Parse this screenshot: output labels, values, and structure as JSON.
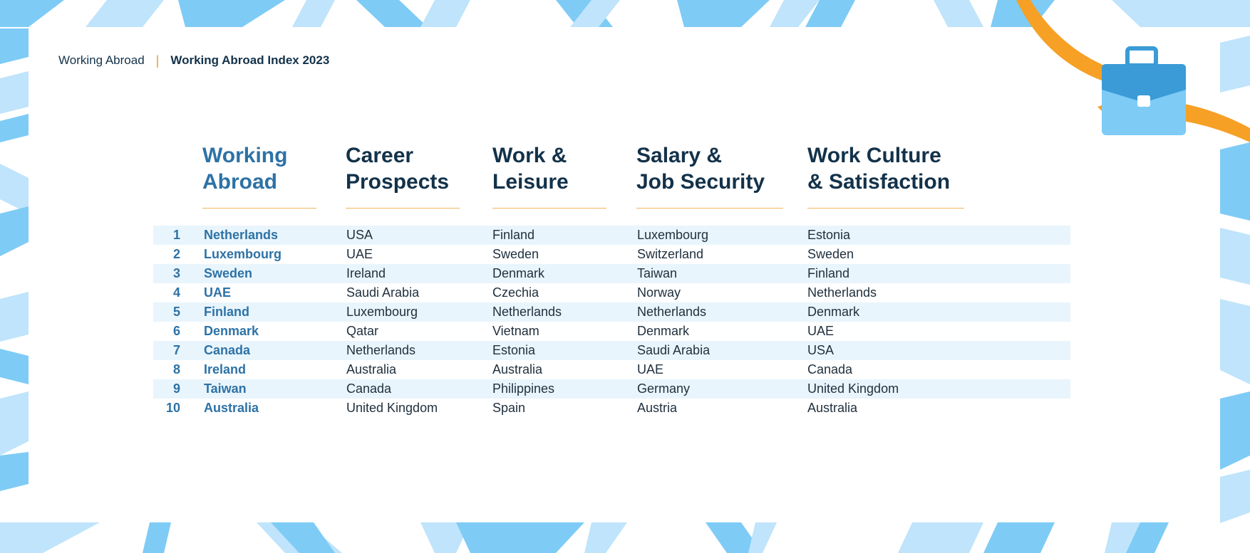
{
  "breadcrumb": {
    "parent": "Working Abroad",
    "separator": "|",
    "current": "Working Abroad Index 2023"
  },
  "columns": [
    "Working\nAbroad",
    "Career\nProspects",
    "Work &\nLeisure",
    "Salary &\nJob Security",
    "Work Culture\n& Satisfaction"
  ],
  "rows": [
    {
      "rank": "1",
      "working_abroad": "Netherlands",
      "career_prospects": "USA",
      "work_leisure": "Finland",
      "salary_job_security": "Luxembourg",
      "work_culture_satisfaction": "Estonia"
    },
    {
      "rank": "2",
      "working_abroad": "Luxembourg",
      "career_prospects": "UAE",
      "work_leisure": "Sweden",
      "salary_job_security": "Switzerland",
      "work_culture_satisfaction": "Sweden"
    },
    {
      "rank": "3",
      "working_abroad": "Sweden",
      "career_prospects": "Ireland",
      "work_leisure": "Denmark",
      "salary_job_security": "Taiwan",
      "work_culture_satisfaction": "Finland"
    },
    {
      "rank": "4",
      "working_abroad": "UAE",
      "career_prospects": "Saudi Arabia",
      "work_leisure": "Czechia",
      "salary_job_security": "Norway",
      "work_culture_satisfaction": "Netherlands"
    },
    {
      "rank": "5",
      "working_abroad": "Finland",
      "career_prospects": "Luxembourg",
      "work_leisure": "Netherlands",
      "salary_job_security": "Netherlands",
      "work_culture_satisfaction": "Denmark"
    },
    {
      "rank": "6",
      "working_abroad": "Denmark",
      "career_prospects": "Qatar",
      "work_leisure": "Vietnam",
      "salary_job_security": "Denmark",
      "work_culture_satisfaction": "UAE"
    },
    {
      "rank": "7",
      "working_abroad": "Canada",
      "career_prospects": "Netherlands",
      "work_leisure": "Estonia",
      "salary_job_security": "Saudi Arabia",
      "work_culture_satisfaction": "USA"
    },
    {
      "rank": "8",
      "working_abroad": "Ireland",
      "career_prospects": "Australia",
      "work_leisure": "Australia",
      "salary_job_security": "UAE",
      "work_culture_satisfaction": "Canada"
    },
    {
      "rank": "9",
      "working_abroad": "Taiwan",
      "career_prospects": "Canada",
      "work_leisure": "Philippines",
      "salary_job_security": "Germany",
      "work_culture_satisfaction": "United Kingdom"
    },
    {
      "rank": "10",
      "working_abroad": "Australia",
      "career_prospects": "United Kingdom",
      "work_leisure": "Spain",
      "salary_job_security": "Austria",
      "work_culture_satisfaction": "Australia"
    }
  ],
  "colors": {
    "accent_blue": "#2d72a6",
    "heading_navy": "#13324a",
    "row_shade": "#e9f5fc",
    "underline_orange": "#f3b462",
    "ribbon_orange": "#f6a025",
    "pattern_light": "#bfe4fb",
    "pattern_mid": "#7ecbf6"
  },
  "icons": {
    "decoration": "briefcase-icon"
  }
}
